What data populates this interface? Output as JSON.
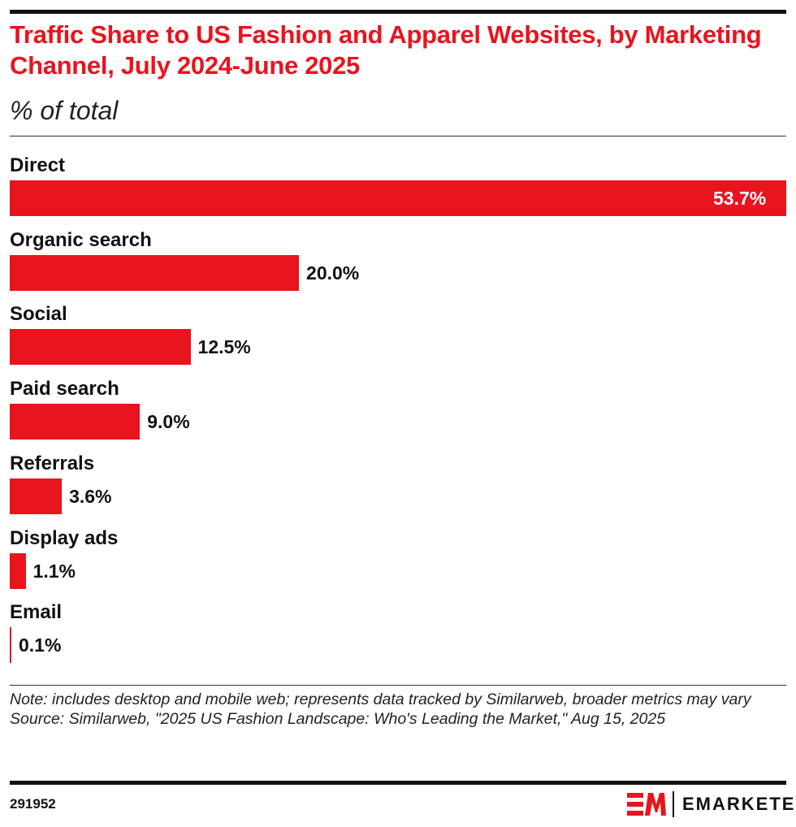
{
  "chart_data": {
    "type": "bar",
    "orientation": "horizontal",
    "title": "Traffic Share to US Fashion and Apparel Websites, by Marketing Channel, July 2024-June 2025",
    "subtitle": "% of total",
    "categories": [
      "Direct",
      "Organic search",
      "Social",
      "Paid search",
      "Referrals",
      "Display ads",
      "Email"
    ],
    "values": [
      53.7,
      20.0,
      12.5,
      9.0,
      3.6,
      1.1,
      0.1
    ],
    "value_labels": [
      "53.7%",
      "20.0%",
      "12.5%",
      "9.0%",
      "3.6%",
      "1.1%",
      "0.1%"
    ],
    "xlim": [
      0,
      53.7
    ],
    "grid": false,
    "bar_color": "#e8141e"
  },
  "footer": {
    "note": "Note: includes desktop and mobile web; represents data tracked by Similarweb, broader metrics may vary",
    "source": "Source: Similarweb, \"2025 US Fashion Landscape: Who's Leading the Market,\" Aug 15, 2025",
    "chart_id": "291952",
    "logo_text": "EMARKETER"
  }
}
